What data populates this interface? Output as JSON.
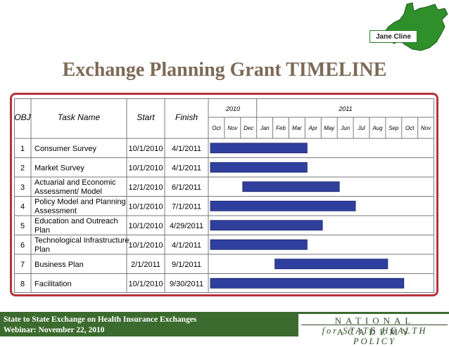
{
  "speaker_label": "Jane Cline",
  "title": "Exchange Planning Grant TIMELINE",
  "table": {
    "headers": {
      "obj": "OBJ",
      "task": "Task Name",
      "start": "Start",
      "finish": "Finish"
    },
    "years": [
      "2010",
      "2011"
    ],
    "months": [
      "Oct",
      "Nov",
      "Dec",
      "Jan",
      "Feb",
      "Mar",
      "Apr",
      "May",
      "Jun",
      "Jul",
      "Aug",
      "Sep",
      "Oct",
      "Nov"
    ],
    "rows": [
      {
        "obj": "1",
        "task_lines": [
          "Consumer Survey"
        ],
        "start": "10/1/2010",
        "finish": "4/1/2011",
        "bar_start_month": 0,
        "bar_end_month": 6
      },
      {
        "obj": "2",
        "task_lines": [
          "Market Survey"
        ],
        "start": "10/1/2010",
        "finish": "4/1/2011",
        "bar_start_month": 0,
        "bar_end_month": 6
      },
      {
        "obj": "3",
        "task_lines": [
          "Actuarial and Economic",
          "Assessment/ Model"
        ],
        "start": "12/1/2010",
        "finish": "6/1/2011",
        "bar_start_month": 2,
        "bar_end_month": 8
      },
      {
        "obj": "4",
        "task_lines": [
          "Policy Model and Planning",
          "Assessment"
        ],
        "start": "10/1/2010",
        "finish": "7/1/2011",
        "bar_start_month": 0,
        "bar_end_month": 9
      },
      {
        "obj": "5",
        "task_lines": [
          "Education and Outreach",
          "Plan"
        ],
        "start": "10/1/2010",
        "finish": "4/29/2011",
        "bar_start_month": 0,
        "bar_end_month": 6.95
      },
      {
        "obj": "6",
        "task_lines": [
          "Technological Infrastructure",
          "Plan"
        ],
        "start": "10/1/2010",
        "finish": "4/1/2011",
        "bar_start_month": 0,
        "bar_end_month": 6
      },
      {
        "obj": "7",
        "task_lines": [
          "Business Plan"
        ],
        "start": "2/1/2011",
        "finish": "9/1/2011",
        "bar_start_month": 4,
        "bar_end_month": 11
      },
      {
        "obj": "8",
        "task_lines": [
          "Facilitation"
        ],
        "start": "10/1/2010",
        "finish": "9/30/2011",
        "bar_start_month": 0,
        "bar_end_month": 12
      }
    ]
  },
  "footer": {
    "line1": "State to State Exchange on Health Insurance Exchanges",
    "line2": "Webinar: November 22, 2010",
    "logo_line1": "NATIONAL ACADEMY",
    "logo_line2": "for STATE HEALTH POLICY"
  },
  "colors": {
    "bar": "#2f3f9e",
    "title": "#7d6a56",
    "frame": "#b8323c",
    "footer_green": "#3b6b2e",
    "map_green": "#2f8f2a"
  }
}
